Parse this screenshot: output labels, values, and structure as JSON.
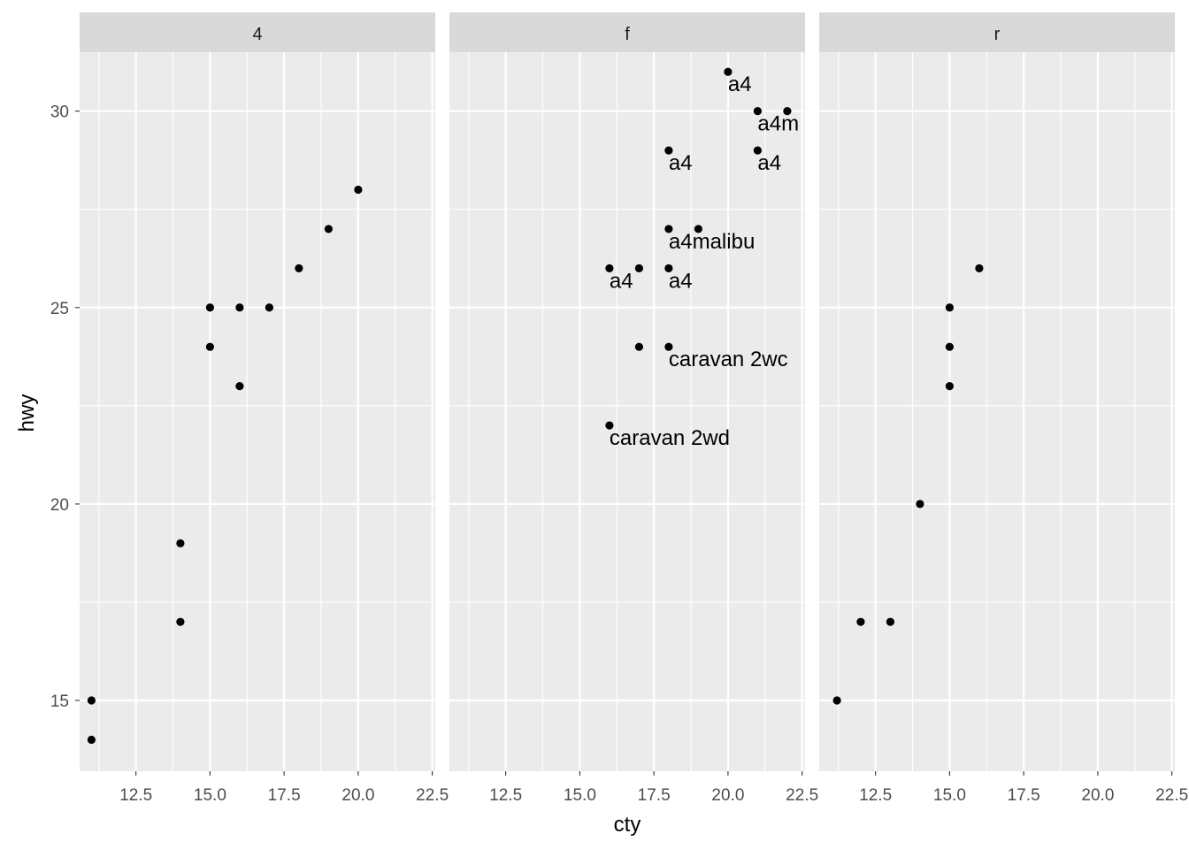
{
  "chart_data": {
    "type": "scatter",
    "xlabel": "cty",
    "ylabel": "hwy",
    "xlim": [
      10.6,
      22.6
    ],
    "ylim": [
      13.2,
      31.5
    ],
    "x_ticks": [
      12.5,
      15.0,
      17.5,
      20.0,
      22.5
    ],
    "x_tick_labels": [
      "12.5",
      "15.0",
      "17.5",
      "20.0",
      "22.5"
    ],
    "y_ticks": [
      15,
      20,
      25,
      30
    ],
    "y_tick_labels": [
      "15",
      "20",
      "25",
      "30"
    ],
    "grid": true,
    "colors": {
      "panel_bg": "#ebebeb",
      "strip_bg": "#d9d9d9",
      "grid": "#ffffff",
      "point": "#000000",
      "tick": "#333333"
    },
    "panels": [
      {
        "strip": "4",
        "points": [
          {
            "x": 11,
            "y": 15
          },
          {
            "x": 11,
            "y": 14
          },
          {
            "x": 14,
            "y": 19
          },
          {
            "x": 14,
            "y": 17
          },
          {
            "x": 15,
            "y": 25
          },
          {
            "x": 15,
            "y": 24
          },
          {
            "x": 16,
            "y": 25
          },
          {
            "x": 16,
            "y": 23
          },
          {
            "x": 17,
            "y": 25
          },
          {
            "x": 18,
            "y": 26
          },
          {
            "x": 19,
            "y": 27
          },
          {
            "x": 20,
            "y": 28
          }
        ],
        "labels": []
      },
      {
        "strip": "f",
        "points": [
          {
            "x": 20,
            "y": 31
          },
          {
            "x": 21,
            "y": 30
          },
          {
            "x": 22,
            "y": 30
          },
          {
            "x": 18,
            "y": 29
          },
          {
            "x": 21,
            "y": 29
          },
          {
            "x": 18,
            "y": 27
          },
          {
            "x": 19,
            "y": 27
          },
          {
            "x": 16,
            "y": 26
          },
          {
            "x": 17,
            "y": 26
          },
          {
            "x": 18,
            "y": 26
          },
          {
            "x": 17,
            "y": 24
          },
          {
            "x": 18,
            "y": 24
          },
          {
            "x": 16,
            "y": 22
          }
        ],
        "labels": [
          {
            "x": 20,
            "y": 31,
            "text": "a4"
          },
          {
            "x": 21,
            "y": 30,
            "text": "a4m"
          },
          {
            "x": 18,
            "y": 29,
            "text": "a4"
          },
          {
            "x": 21,
            "y": 29,
            "text": "a4"
          },
          {
            "x": 18,
            "y": 27,
            "text": "a4malibu"
          },
          {
            "x": 16,
            "y": 26,
            "text": "a4"
          },
          {
            "x": 18,
            "y": 26,
            "text": "a4"
          },
          {
            "x": 18,
            "y": 24,
            "text": "caravan 2wc"
          },
          {
            "x": 16,
            "y": 22,
            "text": "caravan 2wd"
          }
        ]
      },
      {
        "strip": "r",
        "points": [
          {
            "x": 11.2,
            "y": 15
          },
          {
            "x": 12,
            "y": 17
          },
          {
            "x": 13,
            "y": 17
          },
          {
            "x": 14,
            "y": 20
          },
          {
            "x": 15,
            "y": 25
          },
          {
            "x": 15,
            "y": 24
          },
          {
            "x": 15,
            "y": 23
          },
          {
            "x": 16,
            "y": 26
          }
        ],
        "labels": []
      }
    ]
  }
}
